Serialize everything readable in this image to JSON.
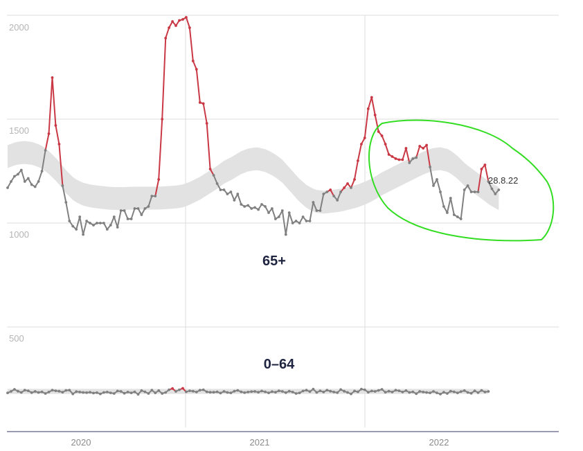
{
  "colors": {
    "above_band": "#c93844",
    "within_band": "#808080",
    "band": "#e2e2e2",
    "grid": "#dcdcdc",
    "axis": "#9a9ab0",
    "highlight": "#33dd22",
    "group_label": "#1e2340"
  },
  "chart_data": {
    "type": "line",
    "x_type": "weekly dates",
    "y_ticks": [
      "2000",
      "1500",
      "1000",
      "500"
    ],
    "x_ticks": [
      "2020",
      "2021",
      "2022"
    ],
    "annotation": "28.8.22",
    "grid": true,
    "groups": [
      {
        "label": "65+",
        "series_style": "points above expected band drawn in red, others in grey",
        "y_range": [
          1000,
          2000
        ],
        "start_week": "2019-W33",
        "values": [
          1170,
          1200,
          1225,
          1235,
          1255,
          1200,
          1215,
          1185,
          1175,
          1200,
          1250,
          1350,
          1430,
          1700,
          1470,
          1380,
          1180,
          1100,
          1010,
          985,
          970,
          1030,
          945,
          1010,
          1000,
          990,
          1000,
          1000,
          1000,
          970,
          990,
          1030,
          980,
          1060,
          1060,
          1020,
          1020,
          1070,
          1070,
          1040,
          1070,
          1080,
          1130,
          1130,
          1210,
          1500,
          1890,
          1940,
          1970,
          1950,
          1975,
          1980,
          1990,
          1940,
          1780,
          1740,
          1580,
          1575,
          1480,
          1260,
          1230,
          1190,
          1160,
          1160,
          1140,
          1150,
          1110,
          1140,
          1090,
          1080,
          1085,
          1070,
          1075,
          1065,
          1090,
          1080,
          1050,
          1070,
          1020,
          1030,
          1060,
          945,
          1050,
          1000,
          1010,
          1000,
          1030,
          1010,
          1010,
          1100,
          1060,
          1060,
          1140,
          1150,
          1160,
          1130,
          1110,
          1150,
          1170,
          1190,
          1170,
          1210,
          1300,
          1380,
          1410,
          1550,
          1605,
          1520,
          1440,
          1420,
          1380,
          1330,
          1320,
          1310,
          1305,
          1305,
          1360,
          1290,
          1310,
          1315,
          1370,
          1360,
          1375,
          1270,
          1180,
          1210,
          1150,
          1080,
          1050,
          1120,
          1040,
          1030,
          1020,
          1160,
          1180,
          1150,
          1150,
          1150,
          1260,
          1280,
          1200,
          1165,
          1140,
          1160
        ],
        "band_center": [
          1320,
          1335,
          1340,
          1335,
          1320,
          1290,
          1250,
          1200,
          1160,
          1140,
          1130,
          1125,
          1120,
          1118,
          1118,
          1120,
          1120,
          1120,
          1120,
          1122,
          1125,
          1130,
          1145,
          1165,
          1190,
          1215,
          1245,
          1265,
          1290,
          1305,
          1310,
          1300,
          1280,
          1250,
          1205,
          1160,
          1125,
          1105,
          1100,
          1105,
          1110,
          1120,
          1130,
          1145,
          1165,
          1190,
          1210,
          1230,
          1250,
          1270,
          1290,
          1305,
          1310,
          1300,
          1270,
          1230,
          1200,
          1170,
          1140,
          1118
        ],
        "band_halfwidth": 55
      },
      {
        "label": "0–64",
        "series_style": "points above expected band drawn in red, others in grey",
        "y_range": [
          0,
          500
        ],
        "start_week": "2019-W33",
        "values": [
          183,
          190,
          200,
          191,
          185,
          196,
          193,
          184,
          190,
          185,
          188,
          180,
          187,
          196,
          193,
          191,
          186,
          195,
          196,
          178,
          189,
          187,
          185,
          184,
          186,
          182,
          184,
          178,
          185,
          187,
          183,
          180,
          192,
          190,
          181,
          187,
          183,
          188,
          176,
          194,
          188,
          180,
          196,
          183,
          194,
          180,
          185,
          198,
          204,
          190,
          198,
          205,
          188,
          193,
          191,
          187,
          196,
          198,
          188,
          186,
          186,
          188,
          182,
          190,
          185,
          183,
          191,
          195,
          188,
          184,
          187,
          189,
          190,
          186,
          192,
          188,
          183,
          189,
          186,
          193,
          190,
          184,
          191,
          187,
          180,
          183,
          192,
          196,
          189,
          201,
          185,
          193,
          187,
          196,
          191,
          187,
          184,
          199,
          191,
          185,
          178,
          192,
          188,
          201,
          198,
          186,
          192,
          190,
          195,
          200,
          186,
          191,
          187,
          196,
          193,
          187,
          194,
          185,
          188,
          179,
          190,
          187,
          185,
          183,
          190,
          183,
          177,
          186,
          180,
          191,
          188,
          183,
          189,
          194,
          185,
          181,
          193,
          184,
          195,
          187,
          190
        ],
        "band_center": [
          190,
          190
        ],
        "band_halfwidth": 12
      }
    ]
  }
}
